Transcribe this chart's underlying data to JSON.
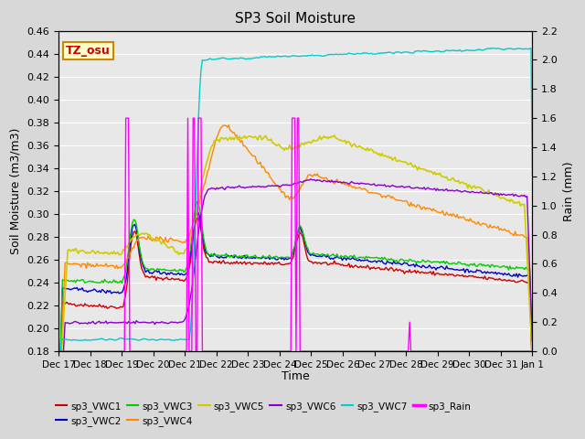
{
  "title": "SP3 Soil Moisture",
  "ylabel_left": "Soil Moisture (m3/m3)",
  "ylabel_right": "Rain (mm)",
  "xlabel": "Time",
  "ylim_left": [
    0.18,
    0.46
  ],
  "ylim_right": [
    0.0,
    2.2
  ],
  "background_color": "#d8d8d8",
  "plot_bg_color": "#e8e8e8",
  "watermark_text": "TZ_osu",
  "watermark_color": "#cc0000",
  "watermark_bg": "#ffffcc",
  "watermark_border": "#cc8800",
  "series_colors": {
    "VWC1": "#cc0000",
    "VWC2": "#0000cc",
    "VWC3": "#00cc00",
    "VWC4": "#ff8800",
    "VWC5": "#cccc00",
    "VWC6": "#8800cc",
    "VWC7": "#00cccc",
    "Rain": "#ff00ff"
  },
  "xtick_labels": [
    "Dec 17",
    "Dec 18",
    "Dec 19",
    "Dec 20",
    "Dec 21",
    "Dec 22",
    "Dec 23",
    "Dec 24",
    "Dec 25",
    "Dec 26",
    "Dec 27",
    "Dec 28",
    "Dec 29",
    "Dec 30",
    "Dec 31",
    "Jan 1"
  ],
  "yticks_left": [
    0.18,
    0.2,
    0.22,
    0.24,
    0.26,
    0.28,
    0.3,
    0.32,
    0.34,
    0.36,
    0.38,
    0.4,
    0.42,
    0.44,
    0.46
  ],
  "yticks_right": [
    0.0,
    0.2,
    0.4,
    0.6,
    0.8,
    1.0,
    1.2,
    1.4,
    1.6,
    1.8,
    2.0,
    2.2
  ],
  "n_days": 15,
  "n_pts": 360
}
